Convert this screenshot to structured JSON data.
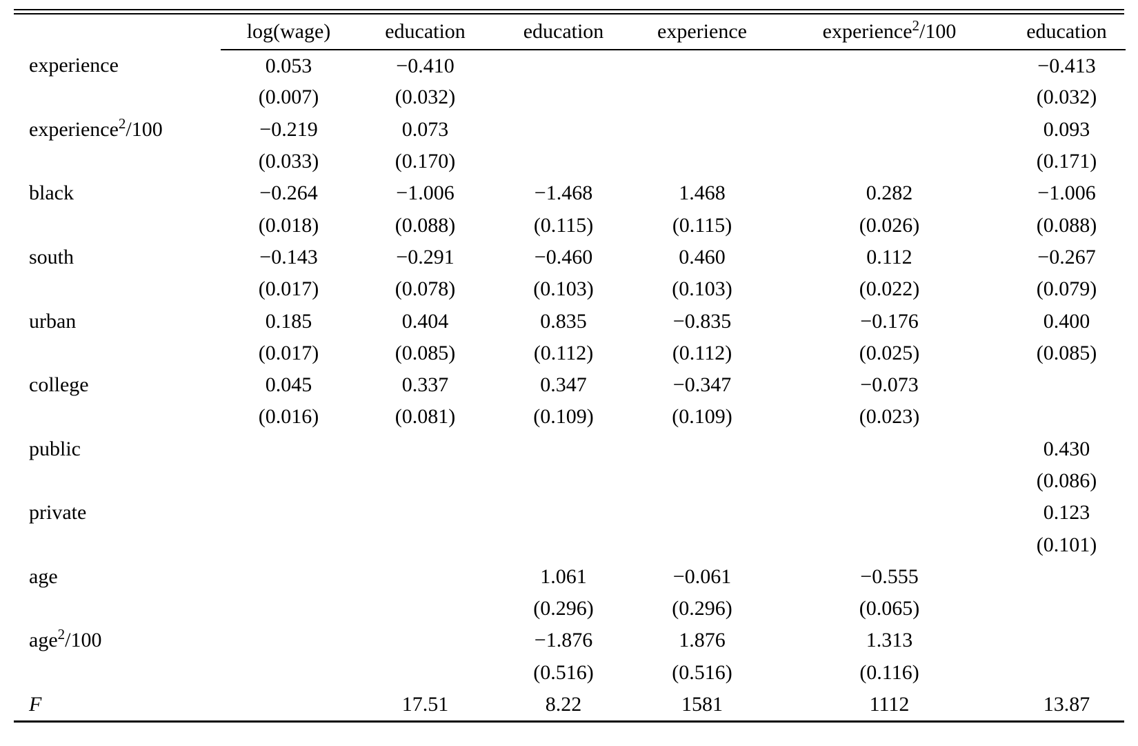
{
  "colors": {
    "text": "#000000",
    "background": "#ffffff",
    "rule": "#000000"
  },
  "table": {
    "columns": [
      "log(wage)",
      "education",
      "education",
      "experience",
      "experience²/100",
      "education"
    ],
    "rows": [
      {
        "label": "experience",
        "coef": [
          "0.053",
          "−0.410",
          "",
          "",
          "",
          "−0.413"
        ],
        "se": [
          "(0.007)",
          "(0.032)",
          "",
          "",
          "",
          "(0.032)"
        ]
      },
      {
        "label": "experience²/100",
        "coef": [
          "−0.219",
          "0.073",
          "",
          "",
          "",
          "0.093"
        ],
        "se": [
          "(0.033)",
          "(0.170)",
          "",
          "",
          "",
          "(0.171)"
        ]
      },
      {
        "label": "black",
        "coef": [
          "−0.264",
          "−1.006",
          "−1.468",
          "1.468",
          "0.282",
          "−1.006"
        ],
        "se": [
          "(0.018)",
          "(0.088)",
          "(0.115)",
          "(0.115)",
          "(0.026)",
          "(0.088)"
        ]
      },
      {
        "label": "south",
        "coef": [
          "−0.143",
          "−0.291",
          "−0.460",
          "0.460",
          "0.112",
          "−0.267"
        ],
        "se": [
          "(0.017)",
          "(0.078)",
          "(0.103)",
          "(0.103)",
          "(0.022)",
          "(0.079)"
        ]
      },
      {
        "label": "urban",
        "coef": [
          "0.185",
          "0.404",
          "0.835",
          "−0.835",
          "−0.176",
          "0.400"
        ],
        "se": [
          "(0.017)",
          "(0.085)",
          "(0.112)",
          "(0.112)",
          "(0.025)",
          "(0.085)"
        ]
      },
      {
        "label": "college",
        "coef": [
          "0.045",
          "0.337",
          "0.347",
          "−0.347",
          "−0.073",
          ""
        ],
        "se": [
          "(0.016)",
          "(0.081)",
          "(0.109)",
          "(0.109)",
          "(0.023)",
          ""
        ]
      },
      {
        "label": "public",
        "coef": [
          "",
          "",
          "",
          "",
          "",
          "0.430"
        ],
        "se": [
          "",
          "",
          "",
          "",
          "",
          "(0.086)"
        ]
      },
      {
        "label": "private",
        "coef": [
          "",
          "",
          "",
          "",
          "",
          "0.123"
        ],
        "se": [
          "",
          "",
          "",
          "",
          "",
          "(0.101)"
        ]
      },
      {
        "label": "age",
        "coef": [
          "",
          "",
          "1.061",
          "−0.061",
          "−0.555",
          ""
        ],
        "se": [
          "",
          "",
          "(0.296)",
          "(0.296)",
          "(0.065)",
          ""
        ]
      },
      {
        "label": "age²/100",
        "coef": [
          "",
          "",
          "−1.876",
          "1.876",
          "1.313",
          ""
        ],
        "se": [
          "",
          "",
          "(0.516)",
          "(0.516)",
          "(0.116)",
          ""
        ]
      }
    ],
    "stat_row": {
      "label": "F",
      "italic": true,
      "values": [
        "",
        "17.51",
        "8.22",
        "1581",
        "1112",
        "13.87"
      ]
    }
  }
}
